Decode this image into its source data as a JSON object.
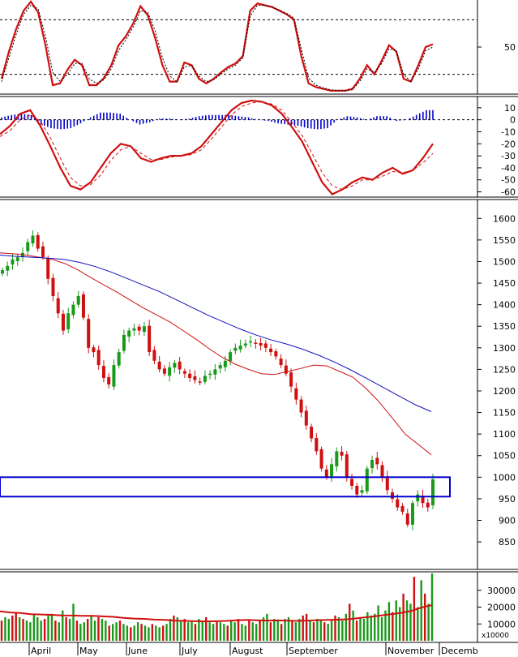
{
  "chart_data": [
    {
      "panel": "stochastic",
      "type": "line",
      "ylim": [
        0,
        100
      ],
      "reference_lines": [
        20,
        80
      ],
      "y_ticks": [
        "50"
      ],
      "series": [
        {
          "values": [
            15,
            45,
            70,
            90,
            100,
            88,
            52,
            8,
            10,
            25,
            36,
            30,
            8,
            8,
            16,
            30,
            52,
            62,
            76,
            95,
            85,
            60,
            30,
            12,
            12,
            33,
            30,
            15,
            10,
            15,
            22,
            28,
            32,
            40,
            90,
            98,
            96,
            94,
            90,
            86,
            80,
            40,
            10,
            6,
            4,
            2,
            2,
            2,
            4,
            15,
            30,
            20,
            35,
            52,
            45,
            15,
            12,
            30,
            50,
            53
          ],
          "color": "#d01010"
        },
        {
          "values": [
            12,
            38,
            64,
            86,
            96,
            92,
            62,
            22,
            12,
            20,
            32,
            32,
            15,
            10,
            14,
            26,
            46,
            58,
            72,
            90,
            88,
            68,
            38,
            18,
            12,
            28,
            30,
            18,
            12,
            14,
            20,
            26,
            30,
            38,
            84,
            96,
            96,
            94,
            91,
            87,
            82,
            48,
            16,
            8,
            5,
            3,
            2,
            2,
            3,
            12,
            26,
            22,
            32,
            48,
            46,
            20,
            12,
            26,
            46,
            50
          ],
          "color": "#000000",
          "dashed": true
        }
      ]
    },
    {
      "panel": "macd",
      "type": "line",
      "ylim": [
        -63,
        18
      ],
      "y_ticks": [
        "10",
        "0",
        "-10",
        "-20",
        "-30",
        "-40",
        "-50",
        "-60"
      ],
      "series": [
        {
          "values": [
            -12,
            -5,
            5,
            8,
            -5,
            -22,
            -40,
            -55,
            -58,
            -52,
            -40,
            -28,
            -20,
            -22,
            -32,
            -35,
            -32,
            -30,
            -30,
            -28,
            -22,
            -12,
            -2,
            8,
            14,
            16,
            15,
            12,
            5,
            -6,
            -18,
            -35,
            -52,
            -62,
            -58,
            -52,
            -48,
            -50,
            -44,
            -40,
            -45,
            -42,
            -32,
            -20
          ],
          "color": "#d01010"
        },
        {
          "values": [
            -14,
            -9,
            0,
            4,
            -1,
            -15,
            -32,
            -48,
            -55,
            -54,
            -46,
            -34,
            -25,
            -22,
            -28,
            -33,
            -33,
            -31,
            -30,
            -29,
            -25,
            -16,
            -6,
            4,
            11,
            14,
            15,
            13,
            8,
            -2,
            -13,
            -28,
            -44,
            -55,
            -58,
            -55,
            -50,
            -50,
            -47,
            -43,
            -44,
            -42,
            -36,
            -28
          ],
          "color": "#d01010",
          "dashed": true
        },
        {
          "values": [
            2,
            4,
            5,
            4,
            -4,
            -7,
            -8,
            -7,
            -3,
            2,
            6,
            6,
            5,
            0,
            -4,
            -2,
            1,
            1,
            0,
            1,
            3,
            4,
            4,
            4,
            3,
            2,
            0,
            -1,
            -3,
            -4,
            -5,
            -7,
            -8,
            -7,
            0,
            3,
            2,
            0,
            3,
            3,
            -1,
            0,
            4,
            8
          ],
          "color": "#0000cc",
          "kind": "histogram"
        }
      ]
    },
    {
      "panel": "price",
      "type": "candlestick",
      "ylim": [
        790,
        1640
      ],
      "y_ticks": [
        "1600",
        "1550",
        "1500",
        "1450",
        "1400",
        "1350",
        "1300",
        "1250",
        "1200",
        "1150",
        "1100",
        "1050",
        "1000",
        "950",
        "900",
        "850"
      ],
      "closes": [
        1480,
        1490,
        1505,
        1510,
        1520,
        1545,
        1560,
        1530,
        1510,
        1460,
        1420,
        1380,
        1340,
        1380,
        1400,
        1420,
        1370,
        1300,
        1290,
        1260,
        1230,
        1215,
        1260,
        1290,
        1330,
        1340,
        1345,
        1340,
        1350,
        1290,
        1270,
        1250,
        1240,
        1255,
        1265,
        1250,
        1240,
        1230,
        1225,
        1220,
        1235,
        1240,
        1250,
        1260,
        1270,
        1290,
        1300,
        1305,
        1310,
        1315,
        1310,
        1305,
        1300,
        1290,
        1280,
        1260,
        1240,
        1210,
        1180,
        1150,
        1120,
        1090,
        1060,
        1020,
        1000,
        1030,
        1060,
        1050,
        1000,
        980,
        960,
        970,
        1020,
        1040,
        1030,
        1000,
        970,
        950,
        930,
        920,
        890,
        940,
        960,
        940,
        930,
        995
      ],
      "ma_short": {
        "values": [
          1520,
          1518,
          1515,
          1510,
          1505,
          1495,
          1480,
          1462,
          1445,
          1428,
          1410,
          1392,
          1376,
          1360,
          1340,
          1320,
          1298,
          1278,
          1262,
          1250,
          1240,
          1238,
          1245,
          1252,
          1260,
          1258,
          1245,
          1232,
          1206,
          1175,
          1138,
          1100,
          1076,
          1052
        ],
        "color": "#d01010"
      },
      "ma_long": {
        "values": [
          1515,
          1512,
          1510,
          1508,
          1505,
          1498,
          1488,
          1475,
          1460,
          1445,
          1430,
          1412,
          1394,
          1376,
          1360,
          1344,
          1330,
          1318,
          1308,
          1296,
          1282,
          1266,
          1248,
          1228,
          1208,
          1188,
          1168,
          1152
        ],
        "color": "#1010c0"
      },
      "box": {
        "y_from": 955,
        "y_to": 1000,
        "color": "#0000cc"
      }
    },
    {
      "panel": "volume",
      "type": "bar",
      "ylim": [
        0,
        40000
      ],
      "y_ticks": [
        "30000",
        "20000",
        "10000"
      ],
      "y_unit": "x10000",
      "values": [
        12000,
        14000,
        13000,
        15000,
        17000,
        14000,
        13000,
        12000,
        11000,
        16000,
        14000,
        12000,
        13000,
        15000,
        16000,
        12000,
        11000,
        18000,
        14000,
        13000,
        22000,
        12000,
        10000,
        11000,
        13000,
        15000,
        12000,
        14000,
        13000,
        12000,
        9000,
        10000,
        11000,
        12000,
        10000,
        9000,
        8000,
        9000,
        11000,
        10000,
        9000,
        8000,
        10000,
        9000,
        8000,
        9000,
        10000,
        13000,
        15000,
        14000,
        12000,
        13000,
        11000,
        12000,
        10000,
        13000,
        12000,
        14000,
        11000,
        10000,
        12000,
        11000,
        10000,
        9000,
        12000,
        11000,
        13000,
        10000,
        9000,
        12000,
        11000,
        10000,
        12000,
        14000,
        16000,
        11000,
        13000,
        12000,
        10000,
        13000,
        14000,
        12000,
        11000,
        13000,
        15000,
        16000,
        12000,
        11000,
        13000,
        12000,
        11000,
        10000,
        12000,
        15000,
        14000,
        12000,
        16000,
        22000,
        18000,
        12000,
        14000,
        13000,
        17000,
        15000,
        16000,
        21000,
        14000,
        18000,
        23000,
        17000,
        24000,
        20000,
        28000,
        24000,
        22000,
        38000,
        20000,
        36000,
        28000,
        22000,
        40000
      ],
      "ma": {
        "values": [
          17500,
          16800,
          16500,
          15800,
          15600,
          15400,
          15100,
          15000,
          14800,
          14800,
          14500,
          14200,
          13600,
          13200,
          13000,
          12600,
          12400,
          12000,
          11800,
          11600,
          11500,
          11600,
          11800,
          12200,
          12400,
          12200,
          12000,
          12100,
          11900,
          11800,
          12000,
          12300,
          12400,
          12600,
          12800,
          13600,
          14200,
          15000,
          15800,
          16600,
          17800,
          19800,
          21200
        ],
        "color": "#d01010"
      }
    }
  ],
  "x_axis": {
    "labels": [
      "April",
      "May",
      "June",
      "July",
      "August",
      "September",
      "November",
      "Decemb"
    ]
  }
}
